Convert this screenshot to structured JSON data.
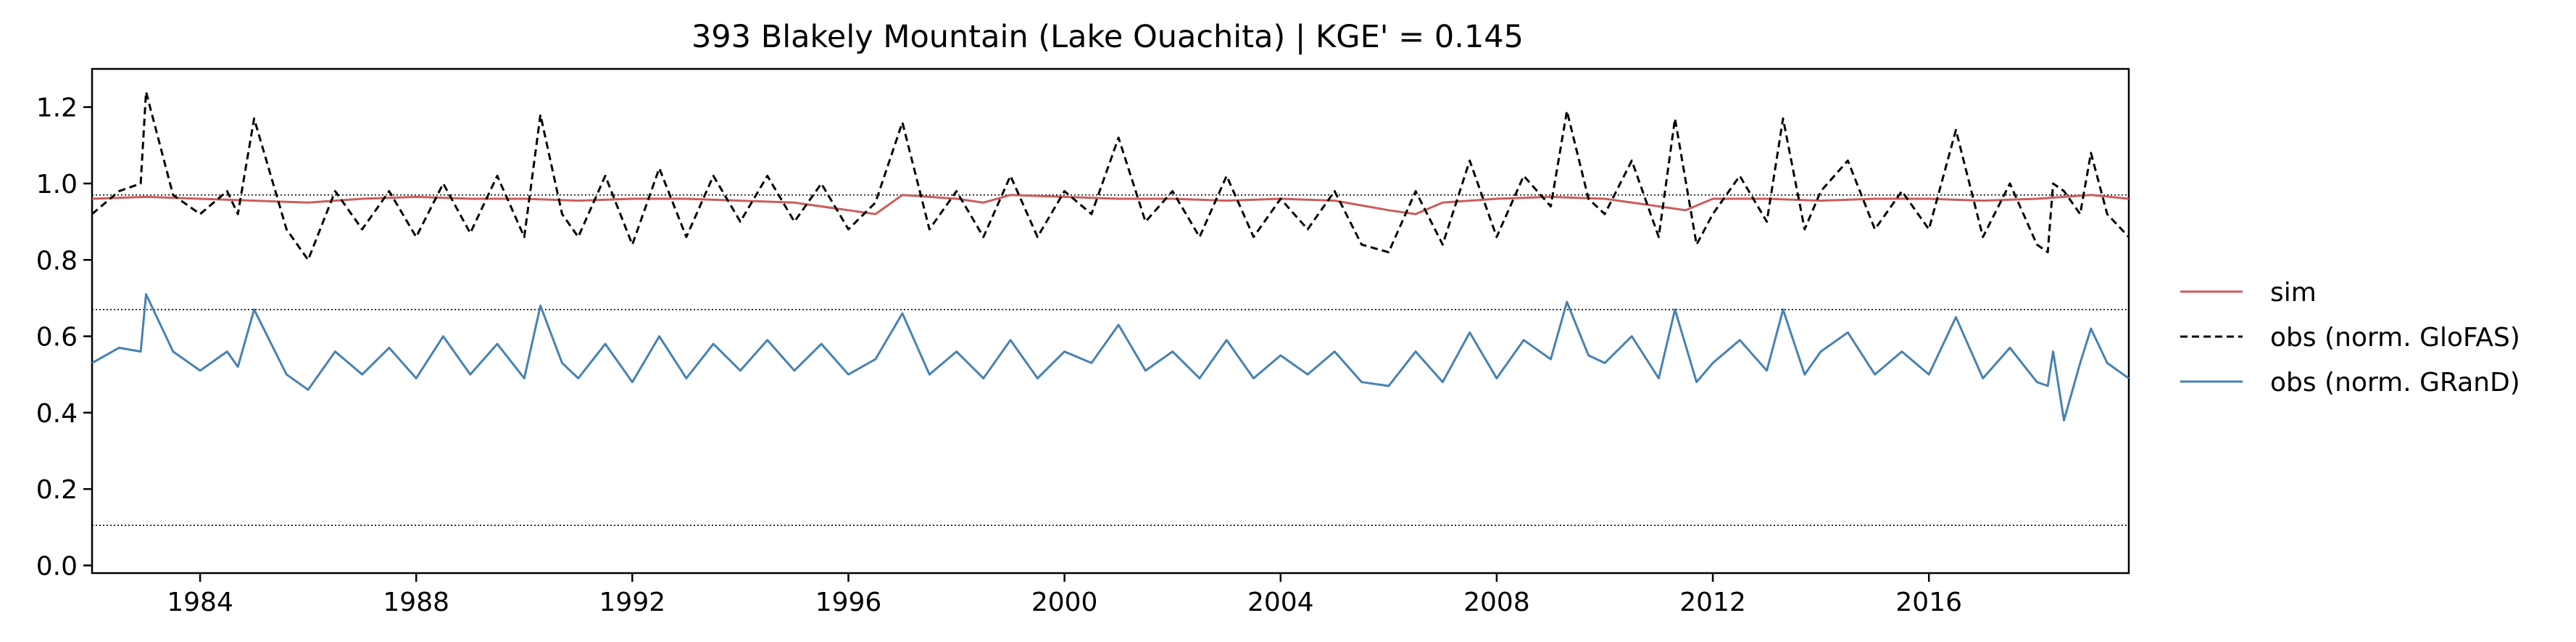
{
  "chart_data": {
    "type": "line",
    "title": "393  Blakely Mountain (Lake Ouachita) | KGE' = 0.145",
    "xlabel": "",
    "ylabel": "",
    "xlim": [
      1982.0,
      2019.7
    ],
    "ylim": [
      -0.02,
      1.3
    ],
    "x_ticks": [
      1984,
      1988,
      1992,
      1996,
      2000,
      2004,
      2008,
      2012,
      2016
    ],
    "x_tick_labels": [
      "1984",
      "1988",
      "1992",
      "1996",
      "2000",
      "2004",
      "2008",
      "2012",
      "2016"
    ],
    "y_ticks": [
      0.0,
      0.2,
      0.4,
      0.6,
      0.8,
      1.0,
      1.2
    ],
    "y_tick_labels": [
      "0.0",
      "0.2",
      "0.4",
      "0.6",
      "0.8",
      "1.0",
      "1.2"
    ],
    "reference_lines": [
      0.97,
      0.67,
      0.105
    ],
    "grid": false,
    "legend_position": "outside right",
    "series": [
      {
        "name": "sim",
        "color": "#cd5c5c",
        "style": "solid",
        "x": [
          1982.0,
          1983.0,
          1984.0,
          1985.0,
          1986.0,
          1987.0,
          1988.0,
          1989.0,
          1990.0,
          1991.0,
          1992.0,
          1993.0,
          1994.0,
          1995.0,
          1996.0,
          1996.5,
          1997.0,
          1998.0,
          1998.5,
          1999.0,
          2000.0,
          2001.0,
          2002.0,
          2003.0,
          2004.0,
          2005.0,
          2006.0,
          2006.5,
          2007.0,
          2008.0,
          2009.0,
          2010.0,
          2011.0,
          2011.5,
          2012.0,
          2013.0,
          2014.0,
          2015.0,
          2016.0,
          2017.0,
          2018.0,
          2019.0,
          2019.7
        ],
        "y": [
          0.96,
          0.965,
          0.96,
          0.955,
          0.95,
          0.96,
          0.965,
          0.96,
          0.96,
          0.955,
          0.96,
          0.96,
          0.955,
          0.95,
          0.93,
          0.92,
          0.97,
          0.96,
          0.95,
          0.97,
          0.965,
          0.96,
          0.96,
          0.955,
          0.96,
          0.955,
          0.93,
          0.92,
          0.95,
          0.96,
          0.965,
          0.96,
          0.94,
          0.93,
          0.96,
          0.96,
          0.955,
          0.96,
          0.96,
          0.955,
          0.96,
          0.97,
          0.96
        ]
      },
      {
        "name": "obs (norm. GloFAS)",
        "color": "#000000",
        "style": "dashed",
        "x": [
          1982.0,
          1982.5,
          1982.9,
          1983.0,
          1983.5,
          1984.0,
          1984.5,
          1984.7,
          1985.0,
          1985.6,
          1986.0,
          1986.5,
          1987.0,
          1987.5,
          1988.0,
          1988.5,
          1989.0,
          1989.5,
          1990.0,
          1990.3,
          1990.7,
          1991.0,
          1991.5,
          1992.0,
          1992.5,
          1993.0,
          1993.5,
          1994.0,
          1994.5,
          1995.0,
          1995.5,
          1996.0,
          1996.5,
          1997.0,
          1997.5,
          1998.0,
          1998.5,
          1999.0,
          1999.5,
          2000.0,
          2000.5,
          2001.0,
          2001.5,
          2002.0,
          2002.5,
          2003.0,
          2003.5,
          2004.0,
          2004.5,
          2005.0,
          2005.5,
          2006.0,
          2006.5,
          2007.0,
          2007.5,
          2008.0,
          2008.5,
          2009.0,
          2009.3,
          2009.7,
          2010.0,
          2010.5,
          2011.0,
          2011.3,
          2011.7,
          2012.0,
          2012.5,
          2013.0,
          2013.3,
          2013.7,
          2014.0,
          2014.5,
          2015.0,
          2015.5,
          2016.0,
          2016.5,
          2017.0,
          2017.5,
          2018.0,
          2018.2,
          2018.3,
          2018.5,
          2018.8,
          2019.0,
          2019.3,
          2019.7
        ],
        "y": [
          0.92,
          0.98,
          1.0,
          1.24,
          0.97,
          0.92,
          0.98,
          0.92,
          1.17,
          0.88,
          0.8,
          0.98,
          0.88,
          0.98,
          0.86,
          1.0,
          0.87,
          1.02,
          0.86,
          1.18,
          0.92,
          0.86,
          1.02,
          0.84,
          1.04,
          0.86,
          1.02,
          0.9,
          1.02,
          0.9,
          1.0,
          0.88,
          0.95,
          1.16,
          0.88,
          0.98,
          0.86,
          1.02,
          0.86,
          0.98,
          0.92,
          1.12,
          0.9,
          0.98,
          0.86,
          1.02,
          0.86,
          0.96,
          0.88,
          0.98,
          0.84,
          0.82,
          0.98,
          0.84,
          1.06,
          0.86,
          1.02,
          0.94,
          1.19,
          0.96,
          0.92,
          1.06,
          0.86,
          1.17,
          0.84,
          0.92,
          1.02,
          0.9,
          1.17,
          0.88,
          0.98,
          1.06,
          0.88,
          0.98,
          0.88,
          1.14,
          0.86,
          1.0,
          0.84,
          0.82,
          1.0,
          0.98,
          0.92,
          1.08,
          0.92,
          0.86
        ]
      },
      {
        "name": "obs (norm. GRanD)",
        "color": "#4682b4",
        "style": "solid",
        "x": [
          1982.0,
          1982.5,
          1982.9,
          1983.0,
          1983.5,
          1984.0,
          1984.5,
          1984.7,
          1985.0,
          1985.6,
          1986.0,
          1986.5,
          1987.0,
          1987.5,
          1988.0,
          1988.5,
          1989.0,
          1989.5,
          1990.0,
          1990.3,
          1990.7,
          1991.0,
          1991.5,
          1992.0,
          1992.5,
          1993.0,
          1993.5,
          1994.0,
          1994.5,
          1995.0,
          1995.5,
          1996.0,
          1996.5,
          1997.0,
          1997.5,
          1998.0,
          1998.5,
          1999.0,
          1999.5,
          2000.0,
          2000.5,
          2001.0,
          2001.5,
          2002.0,
          2002.5,
          2003.0,
          2003.5,
          2004.0,
          2004.5,
          2005.0,
          2005.5,
          2006.0,
          2006.5,
          2007.0,
          2007.5,
          2008.0,
          2008.5,
          2009.0,
          2009.3,
          2009.7,
          2010.0,
          2010.5,
          2011.0,
          2011.3,
          2011.7,
          2012.0,
          2012.5,
          2013.0,
          2013.3,
          2013.7,
          2014.0,
          2014.5,
          2015.0,
          2015.5,
          2016.0,
          2016.5,
          2017.0,
          2017.5,
          2018.0,
          2018.2,
          2018.3,
          2018.5,
          2018.8,
          2019.0,
          2019.3,
          2019.7
        ],
        "y": [
          0.53,
          0.57,
          0.56,
          0.71,
          0.56,
          0.51,
          0.56,
          0.52,
          0.67,
          0.5,
          0.46,
          0.56,
          0.5,
          0.57,
          0.49,
          0.6,
          0.5,
          0.58,
          0.49,
          0.68,
          0.53,
          0.49,
          0.58,
          0.48,
          0.6,
          0.49,
          0.58,
          0.51,
          0.59,
          0.51,
          0.58,
          0.5,
          0.54,
          0.66,
          0.5,
          0.56,
          0.49,
          0.59,
          0.49,
          0.56,
          0.53,
          0.63,
          0.51,
          0.56,
          0.49,
          0.59,
          0.49,
          0.55,
          0.5,
          0.56,
          0.48,
          0.47,
          0.56,
          0.48,
          0.61,
          0.49,
          0.59,
          0.54,
          0.69,
          0.55,
          0.53,
          0.6,
          0.49,
          0.67,
          0.48,
          0.53,
          0.59,
          0.51,
          0.67,
          0.5,
          0.56,
          0.61,
          0.5,
          0.56,
          0.5,
          0.65,
          0.49,
          0.57,
          0.48,
          0.47,
          0.56,
          0.38,
          0.53,
          0.62,
          0.53,
          0.49
        ]
      }
    ]
  }
}
